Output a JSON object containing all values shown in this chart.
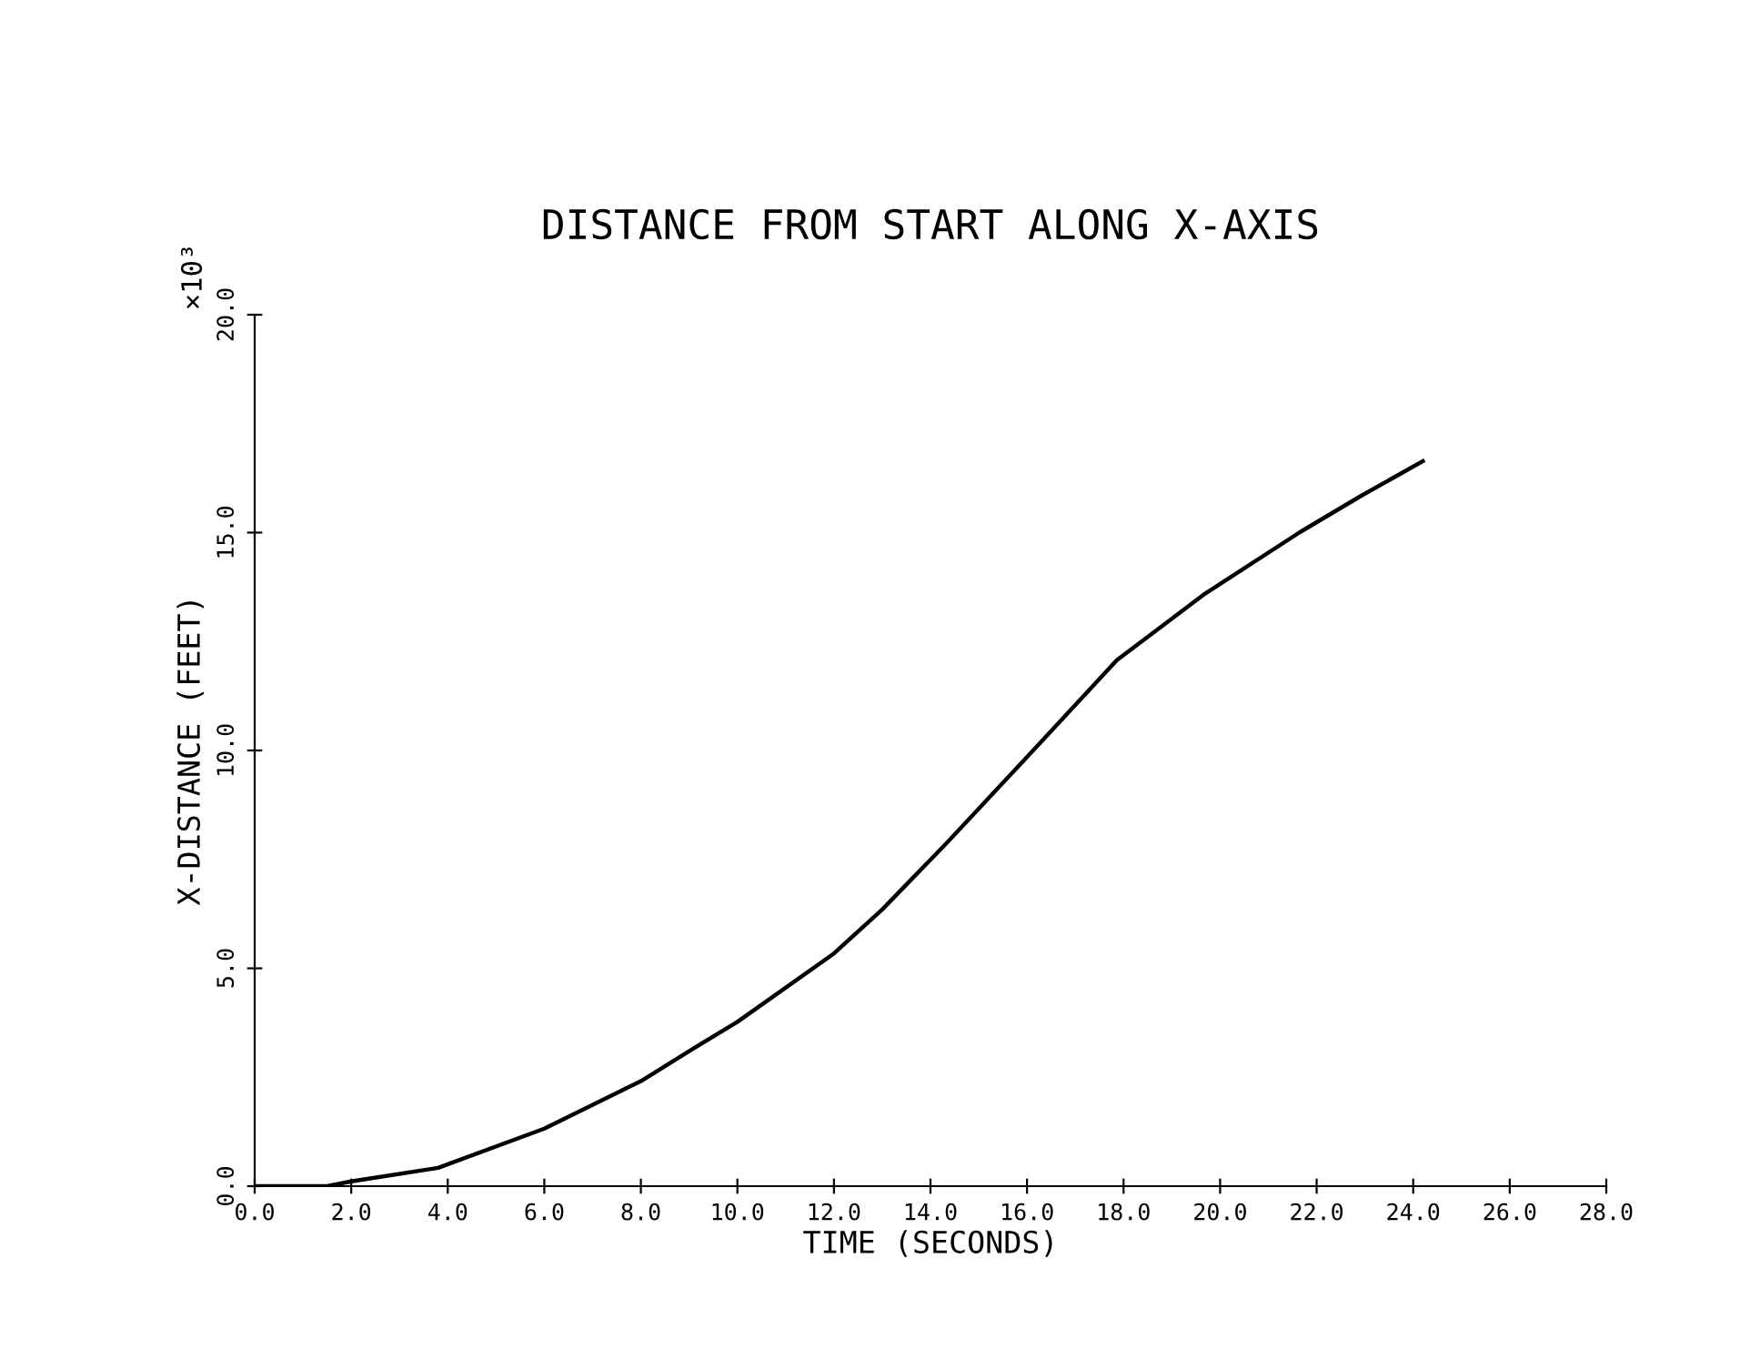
{
  "chart_data": {
    "type": "line",
    "title": "DISTANCE FROM START ALONG X-AXIS",
    "xlabel": "TIME (SECONDS)",
    "ylabel": "X-DISTANCE (FEET)",
    "annotations": [
      "×10³"
    ],
    "x": [
      0,
      1.5,
      2.0,
      3.8,
      6.0,
      8.0,
      9.06,
      10.0,
      12.0,
      13.0,
      14.34,
      16.1,
      17.86,
      19.69,
      21.64,
      22.9,
      24.2
    ],
    "series": [
      {
        "color": "#000000",
        "values": [
          0,
          0,
          0.11,
          0.42,
          1.32,
          2.41,
          3.14,
          3.77,
          5.34,
          6.35,
          7.88,
          9.97,
          12.07,
          13.6,
          15.0,
          15.83,
          16.64
        ]
      }
    ],
    "xlim": [
      0,
      28
    ],
    "xticks": [
      {
        "value": 0,
        "label": "0.0"
      },
      {
        "value": 2,
        "label": "2.0"
      },
      {
        "value": 4,
        "label": "4.0"
      },
      {
        "value": 6,
        "label": "6.0"
      },
      {
        "value": 8,
        "label": "8.0"
      },
      {
        "value": 10,
        "label": "10.0"
      },
      {
        "value": 12,
        "label": "12.0"
      },
      {
        "value": 14,
        "label": "14.0"
      },
      {
        "value": 16,
        "label": "16.0"
      },
      {
        "value": 18,
        "label": "18.0"
      },
      {
        "value": 20,
        "label": "20.0"
      },
      {
        "value": 22,
        "label": "22.0"
      },
      {
        "value": 24,
        "label": "24.0"
      },
      {
        "value": 26,
        "label": "26.0"
      },
      {
        "value": 28,
        "label": "28.0"
      }
    ],
    "ylim": [
      0,
      20
    ],
    "yticks": [
      {
        "value": 0,
        "label": "0.0"
      },
      {
        "value": 5,
        "label": "5.0"
      },
      {
        "value": 10,
        "label": "10.0"
      },
      {
        "value": 15,
        "label": "15.0"
      },
      {
        "value": 20,
        "label": "20.0"
      }
    ],
    "grid": false,
    "marker": "none",
    "line_style": "solid"
  }
}
